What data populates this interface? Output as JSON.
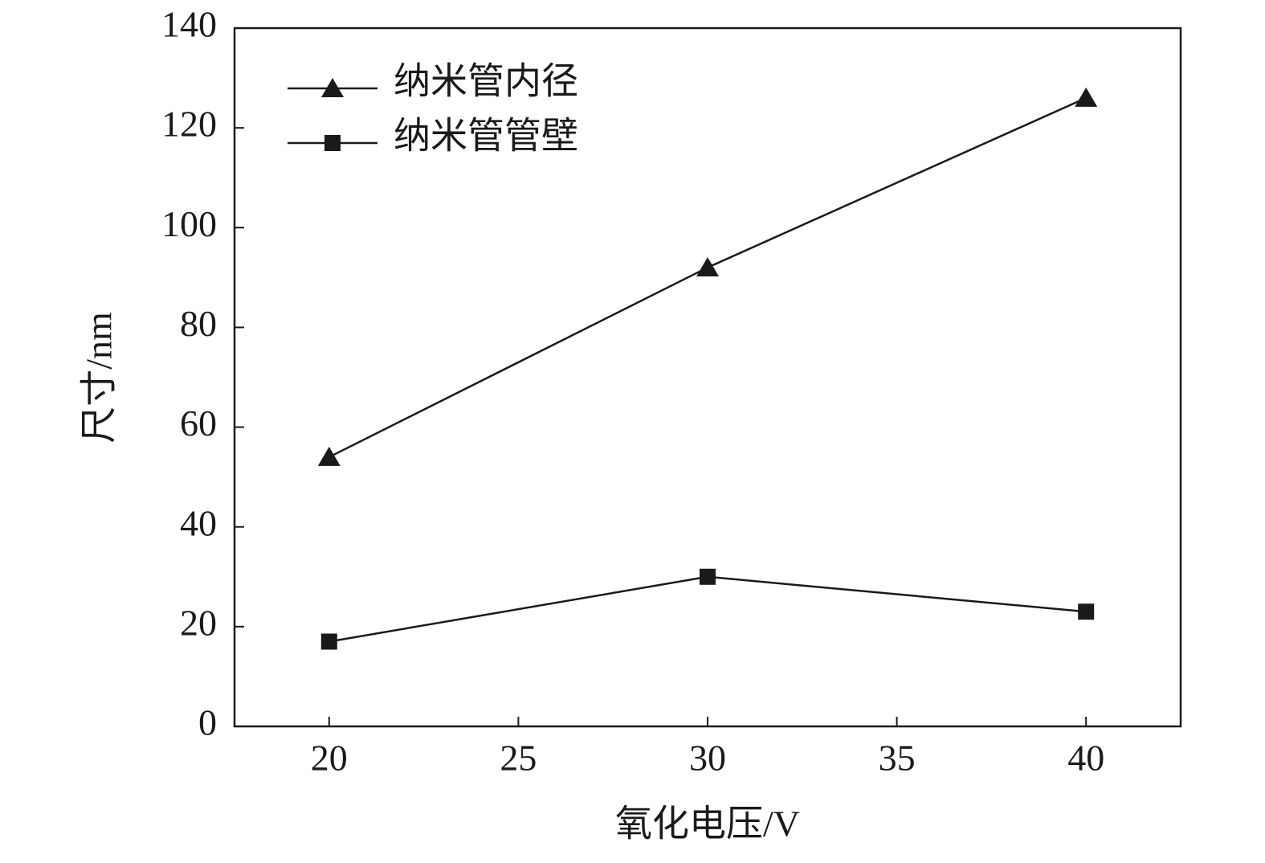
{
  "chart_data": {
    "type": "line",
    "x_label": "氧化电压/V",
    "y_label": "尺寸/nm",
    "x": [
      20,
      30,
      40
    ],
    "series": [
      {
        "name": "纳米管内径",
        "color": "#1a1a1a",
        "marker": "triangle",
        "values": [
          54,
          92,
          126
        ]
      },
      {
        "name": "纳米管管壁",
        "color": "#1a1a1a",
        "marker": "square",
        "values": [
          17,
          30,
          23
        ]
      }
    ],
    "xlim": [
      17.5,
      42.5
    ],
    "xticks": [
      20,
      25,
      30,
      35,
      40
    ],
    "ylim": [
      0,
      140
    ],
    "yticks": [
      0,
      20,
      40,
      60,
      80,
      100,
      120,
      140
    ],
    "legend": "upper-left"
  }
}
